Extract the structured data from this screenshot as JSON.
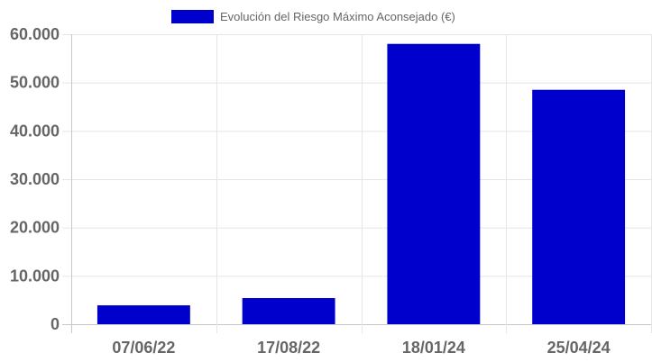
{
  "colors": {
    "bar": "#0000cc",
    "grid": "#e5e5e5",
    "axis": "#c8c8c8",
    "text": "#666666"
  },
  "chart_data": {
    "type": "bar",
    "categories": [
      "07/06/22",
      "17/08/22",
      "18/01/24",
      "25/04/24"
    ],
    "series": [
      {
        "name": "Evolución del Riesgo Máximo Aconsejado (€)",
        "values": [
          3900,
          5400,
          58000,
          48500
        ]
      }
    ],
    "yticks": [
      0,
      10000,
      20000,
      30000,
      40000,
      50000,
      60000
    ],
    "ytick_labels": [
      "0",
      "10.000",
      "20.000",
      "30.000",
      "40.000",
      "50.000",
      "60.000"
    ],
    "ylim": [
      0,
      60000
    ],
    "title": "",
    "xlabel": "",
    "ylabel": "",
    "legend_position": "top-center",
    "grid": true
  }
}
